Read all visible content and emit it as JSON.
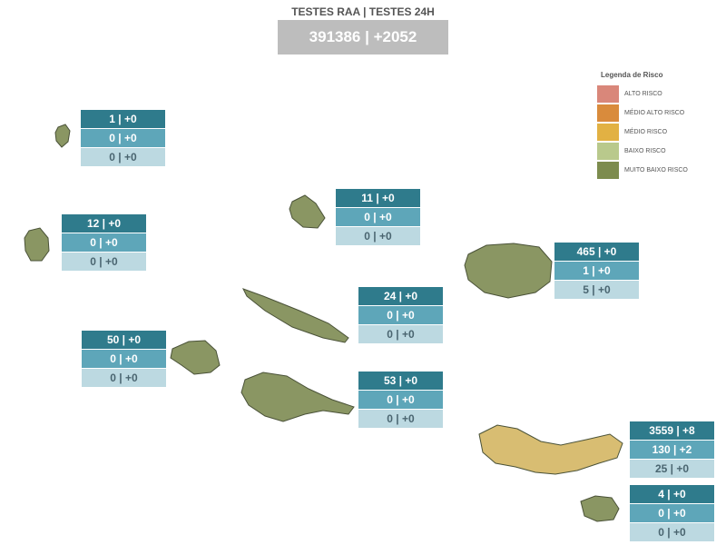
{
  "header": {
    "title": "TESTES RAA | TESTES 24H",
    "value": "391386 | +2052"
  },
  "legend": {
    "title": "Legenda de Risco",
    "items": [
      {
        "label": "ALTO RISCO",
        "color": "#d9877a"
      },
      {
        "label": "MÉDIO ALTO RISCO",
        "color": "#d98b3c"
      },
      {
        "label": "MÉDIO RISCO",
        "color": "#e2b143"
      },
      {
        "label": "BAIXO RISCO",
        "color": "#b9c98c"
      },
      {
        "label": "MUITO BAIXO RISCO",
        "color": "#7d8c4e"
      }
    ]
  },
  "islands": [
    {
      "rows": [
        "1 | +0",
        "0 | +0",
        "0 | +0"
      ]
    },
    {
      "rows": [
        "12 | +0",
        "0 | +0",
        "0 | +0"
      ]
    },
    {
      "rows": [
        "11 | +0",
        "0 | +0",
        "0 | +0"
      ]
    },
    {
      "rows": [
        "24 | +0",
        "0 | +0",
        "0 | +0"
      ]
    },
    {
      "rows": [
        "50 | +0",
        "0 | +0",
        "0 | +0"
      ]
    },
    {
      "rows": [
        "53 | +0",
        "0 | +0",
        "0 | +0"
      ]
    },
    {
      "rows": [
        "465 | +0",
        "1 | +0",
        "5 | +0"
      ]
    },
    {
      "rows": [
        "3559 | +8",
        "130 | +2",
        "25 | +0"
      ]
    },
    {
      "rows": [
        "4 | +0",
        "0 | +0",
        "0 | +0"
      ]
    }
  ]
}
